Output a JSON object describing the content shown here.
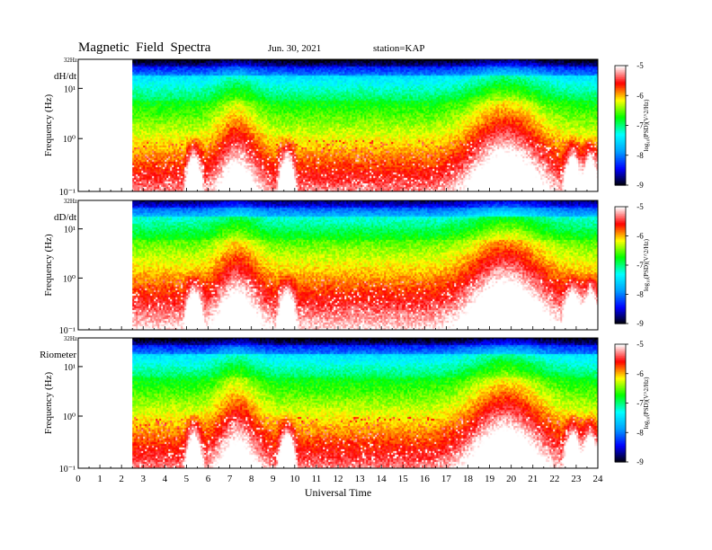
{
  "header": {
    "title": "Magnetic  Field  Spectra",
    "date": "Jun. 30, 2021",
    "station": "station=KAP"
  },
  "chart_data": [
    {
      "type": "heatmap",
      "panel_label": "dH/dt",
      "ylabel": "Frequency  (Hz)",
      "top_tick_label": "32Hz",
      "y_tick_labels": [
        "10¹",
        "10⁰",
        "10⁻¹"
      ],
      "data_start_hour": 2.5,
      "white_patch_centers_hours": [
        5.3,
        9.6,
        22.8,
        23.6
      ],
      "colorbar_ticks": [
        "-5",
        "-6",
        "-7",
        "-8",
        "-9"
      ],
      "colorbar_label": "log₁₀(PSD)(V^2/Hz)"
    },
    {
      "type": "heatmap",
      "panel_label": "dD/dt",
      "ylabel": "Frequency  (Hz)",
      "top_tick_label": "32Hz",
      "y_tick_labels": [
        "10¹",
        "10⁰",
        "10⁻¹"
      ],
      "data_start_hour": 2.5,
      "white_patch_centers_hours": [
        5.3,
        9.6,
        22.8,
        23.6
      ],
      "colorbar_ticks": [
        "-5",
        "-6",
        "-7",
        "-8",
        "-9"
      ],
      "colorbar_label": "log₁₀(PSD)(V^2/Hz)"
    },
    {
      "type": "heatmap",
      "panel_label": "Riometer",
      "ylabel": "Frequency  (Hz)",
      "top_tick_label": "32Hz",
      "y_tick_labels": [
        "10¹",
        "10⁰",
        "10⁻¹"
      ],
      "data_start_hour": 2.5,
      "white_patch_centers_hours": [
        5.3,
        9.6,
        22.8,
        23.6
      ],
      "colorbar_ticks": [
        "-5",
        "-6",
        "-7",
        "-8",
        "-9"
      ],
      "colorbar_label": "log₁₀(PSD)(V^2/Hz)"
    }
  ],
  "x_axis": {
    "label": "Universal Time",
    "range": [
      0,
      24
    ],
    "tick_labels": [
      "0",
      "1",
      "2",
      "3",
      "4",
      "5",
      "6",
      "7",
      "8",
      "9",
      "10",
      "11",
      "12",
      "13",
      "14",
      "15",
      "16",
      "17",
      "18",
      "19",
      "20",
      "21",
      "22",
      "23",
      "24"
    ]
  },
  "colorscale": [
    "#000000",
    "#0000ff",
    "#00a0ff",
    "#00ffff",
    "#00ff00",
    "#ffff00",
    "#ff0000",
    "#ffffff"
  ]
}
